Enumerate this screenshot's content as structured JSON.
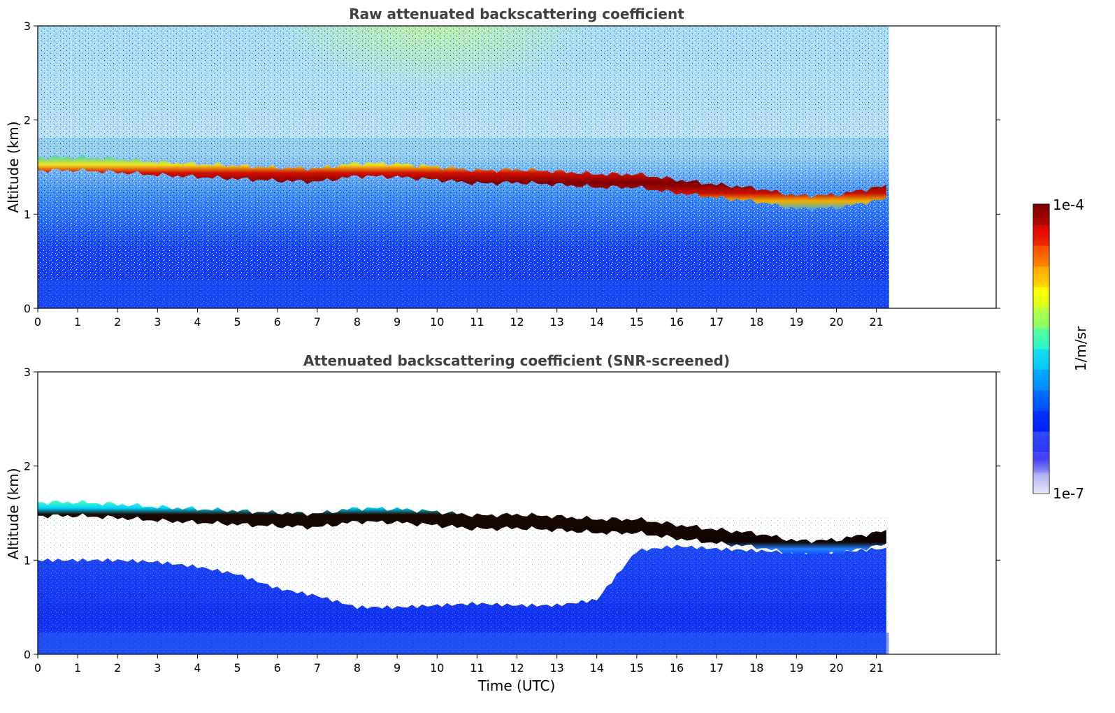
{
  "chart_data": [
    {
      "type": "heatmap",
      "title": "Raw attenuated backscattering coefficient",
      "xlabel": "",
      "ylabel": "Altitude (km)",
      "xlim": [
        0,
        24
      ],
      "ylim": [
        0,
        3
      ],
      "data_extent_x": [
        0,
        21.25
      ],
      "x_ticks": [
        "0",
        "1",
        "2",
        "3",
        "4",
        "5",
        "6",
        "7",
        "8",
        "9",
        "10",
        "11",
        "12",
        "13",
        "14",
        "15",
        "16",
        "17",
        "18",
        "19",
        "20",
        "21"
      ],
      "y_ticks": [
        "0",
        "1",
        "2",
        "3"
      ],
      "cloud_base_km": {
        "time_h": [
          0,
          1,
          2,
          3,
          4,
          5,
          6,
          7,
          8,
          9,
          10,
          11,
          12,
          13,
          14,
          15,
          16,
          17,
          18,
          19,
          20,
          21,
          21.25
        ],
        "altitude_km": [
          1.53,
          1.53,
          1.51,
          1.48,
          1.46,
          1.44,
          1.42,
          1.41,
          1.47,
          1.46,
          1.43,
          1.39,
          1.4,
          1.38,
          1.35,
          1.35,
          1.29,
          1.24,
          1.2,
          1.12,
          1.13,
          1.21,
          1.22
        ]
      }
    },
    {
      "type": "heatmap",
      "title": "Attenuated backscattering coefficient (SNR-screened)",
      "xlabel": "Time (UTC)",
      "ylabel": "Altitude (km)",
      "xlim": [
        0,
        24
      ],
      "ylim": [
        0,
        3
      ],
      "data_extent_x": [
        0,
        21.25
      ],
      "x_ticks": [
        "0",
        "1",
        "2",
        "3",
        "4",
        "5",
        "6",
        "7",
        "8",
        "9",
        "10",
        "11",
        "12",
        "13",
        "14",
        "15",
        "16",
        "17",
        "18",
        "19",
        "20",
        "21"
      ],
      "y_ticks": [
        "0",
        "1",
        "2",
        "3"
      ],
      "screened_signal_top_km": {
        "time_h": [
          0,
          1,
          2,
          3,
          4,
          5,
          6,
          7,
          8,
          9,
          10,
          11,
          12,
          13,
          14,
          15,
          16,
          17,
          18,
          19,
          20,
          21,
          21.25
        ],
        "altitude_km": [
          1.0,
          1.0,
          1.0,
          0.98,
          0.93,
          0.85,
          0.7,
          0.62,
          0.5,
          0.5,
          0.52,
          0.54,
          0.52,
          0.52,
          0.58,
          1.1,
          1.15,
          1.12,
          1.1,
          1.08,
          1.08,
          1.12,
          1.12
        ]
      }
    }
  ],
  "colorbar": {
    "max_label": "1e-4",
    "min_label": "1e-7",
    "label": "1/m/sr",
    "colors": [
      "#e8e8f8",
      "#b8b8ee",
      "#8080f4",
      "#0000ff",
      "#0040ff",
      "#0080ff",
      "#00c8ff",
      "#40ffb8",
      "#b0ff48",
      "#ffff00",
      "#ffb000",
      "#ff5000",
      "#e00000",
      "#800000"
    ]
  }
}
